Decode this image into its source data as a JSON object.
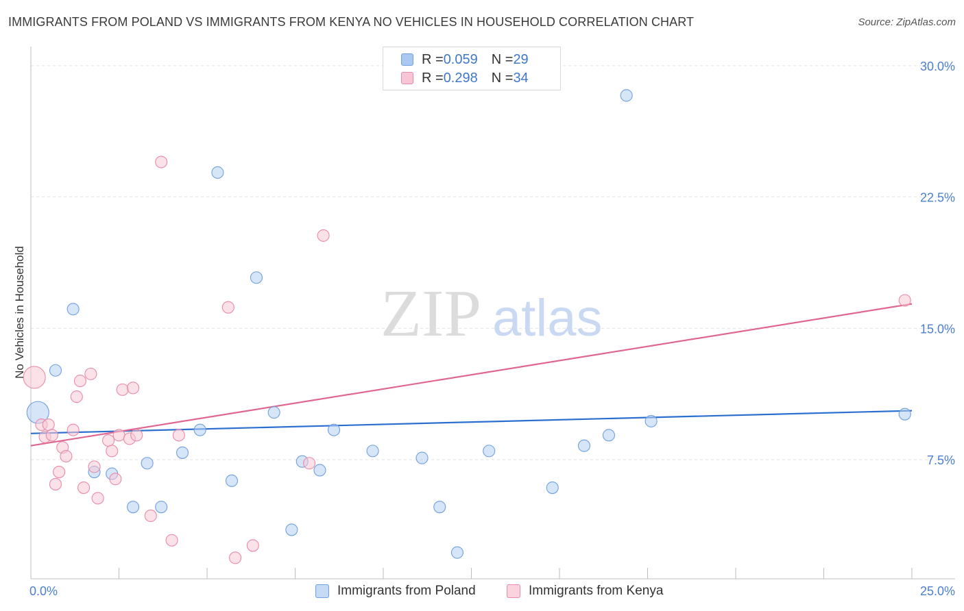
{
  "header": {
    "title": "IMMIGRANTS FROM POLAND VS IMMIGRANTS FROM KENYA NO VEHICLES IN HOUSEHOLD CORRELATION CHART",
    "source": "Source: ZipAtlas.com"
  },
  "watermark": {
    "zip": "ZIP",
    "atlas": "atlas"
  },
  "legend": {
    "rows": [
      {
        "r_label": "R = ",
        "r_value": "0.059",
        "n_label": "N = ",
        "n_value": "29",
        "color": "#aac8f0",
        "border": "#6f9fdf"
      },
      {
        "r_label": "R = ",
        "r_value": "0.298",
        "n_label": "N = ",
        "n_value": "34",
        "color": "#f8c5d4",
        "border": "#e88aa8"
      }
    ]
  },
  "bottom_legend": {
    "poland": "Immigrants from Poland",
    "kenya": "Immigrants from Kenya"
  },
  "chart_data": {
    "type": "scatter",
    "title": "IMMIGRANTS FROM POLAND VS IMMIGRANTS FROM KENYA NO VEHICLES IN HOUSEHOLD CORRELATION CHART",
    "xlabel": "",
    "ylabel": "No Vehicles in Household",
    "xlim": [
      0,
      25
    ],
    "ylim": [
      0.7,
      30.7
    ],
    "x_tick_labels": [
      "0.0%",
      "25.0%"
    ],
    "y_ticks": [
      7.5,
      15.0,
      22.5,
      30.0
    ],
    "y_tick_labels": [
      "7.5%",
      "15.0%",
      "22.5%",
      "30.0%"
    ],
    "grid": true,
    "series": [
      {
        "name": "Immigrants from Poland",
        "color": "#6f9fdf",
        "fill": "#b5d0f3",
        "trend_color": "#2a6fcf",
        "trend": [
          [
            0,
            9.0
          ],
          [
            25,
            10.3
          ]
        ],
        "points": [
          {
            "x": 0.2,
            "y": 10.2,
            "big": true
          },
          {
            "x": 0.7,
            "y": 12.6
          },
          {
            "x": 1.2,
            "y": 16.1
          },
          {
            "x": 1.8,
            "y": 6.8
          },
          {
            "x": 2.3,
            "y": 6.7
          },
          {
            "x": 2.9,
            "y": 4.8
          },
          {
            "x": 3.3,
            "y": 7.3
          },
          {
            "x": 3.7,
            "y": 4.8
          },
          {
            "x": 4.3,
            "y": 7.9
          },
          {
            "x": 4.8,
            "y": 9.2
          },
          {
            "x": 5.3,
            "y": 23.9
          },
          {
            "x": 5.7,
            "y": 6.3
          },
          {
            "x": 6.4,
            "y": 17.9
          },
          {
            "x": 6.9,
            "y": 10.2
          },
          {
            "x": 7.4,
            "y": 3.5
          },
          {
            "x": 7.7,
            "y": 7.4
          },
          {
            "x": 8.2,
            "y": 6.9
          },
          {
            "x": 8.6,
            "y": 9.2
          },
          {
            "x": 9.7,
            "y": 8.0
          },
          {
            "x": 11.1,
            "y": 7.6
          },
          {
            "x": 11.6,
            "y": 4.8
          },
          {
            "x": 12.1,
            "y": 2.2
          },
          {
            "x": 13.0,
            "y": 8.0
          },
          {
            "x": 14.8,
            "y": 5.9
          },
          {
            "x": 15.7,
            "y": 8.3
          },
          {
            "x": 16.4,
            "y": 8.9
          },
          {
            "x": 16.9,
            "y": 28.3
          },
          {
            "x": 17.6,
            "y": 9.7
          },
          {
            "x": 24.8,
            "y": 10.1
          }
        ]
      },
      {
        "name": "Immigrants from Kenya",
        "color": "#e88aa8",
        "fill": "#f8c9d6",
        "trend_color": "#e0668f",
        "trend": [
          [
            0,
            8.3
          ],
          [
            25,
            16.4
          ]
        ],
        "points": [
          {
            "x": 0.1,
            "y": 12.2,
            "big": true
          },
          {
            "x": 0.3,
            "y": 9.5
          },
          {
            "x": 0.4,
            "y": 8.8
          },
          {
            "x": 0.5,
            "y": 9.5
          },
          {
            "x": 0.6,
            "y": 8.9
          },
          {
            "x": 0.7,
            "y": 6.1
          },
          {
            "x": 0.8,
            "y": 6.8
          },
          {
            "x": 0.9,
            "y": 8.2
          },
          {
            "x": 1.0,
            "y": 7.7
          },
          {
            "x": 1.2,
            "y": 9.2
          },
          {
            "x": 1.3,
            "y": 11.1
          },
          {
            "x": 1.4,
            "y": 12.0
          },
          {
            "x": 1.5,
            "y": 5.9
          },
          {
            "x": 1.7,
            "y": 12.4
          },
          {
            "x": 1.8,
            "y": 7.1
          },
          {
            "x": 1.9,
            "y": 5.3
          },
          {
            "x": 2.2,
            "y": 8.6
          },
          {
            "x": 2.3,
            "y": 8.0
          },
          {
            "x": 2.4,
            "y": 6.4
          },
          {
            "x": 2.5,
            "y": 8.9
          },
          {
            "x": 2.6,
            "y": 11.5
          },
          {
            "x": 2.8,
            "y": 8.7
          },
          {
            "x": 2.9,
            "y": 11.6
          },
          {
            "x": 3.0,
            "y": 8.9
          },
          {
            "x": 3.4,
            "y": 4.3
          },
          {
            "x": 3.7,
            "y": 24.5
          },
          {
            "x": 4.0,
            "y": 2.9
          },
          {
            "x": 4.2,
            "y": 8.9
          },
          {
            "x": 5.6,
            "y": 16.2
          },
          {
            "x": 5.8,
            "y": 1.9
          },
          {
            "x": 6.3,
            "y": 2.6
          },
          {
            "x": 7.9,
            "y": 7.3
          },
          {
            "x": 8.3,
            "y": 20.3
          },
          {
            "x": 24.8,
            "y": 16.6
          }
        ]
      }
    ]
  }
}
